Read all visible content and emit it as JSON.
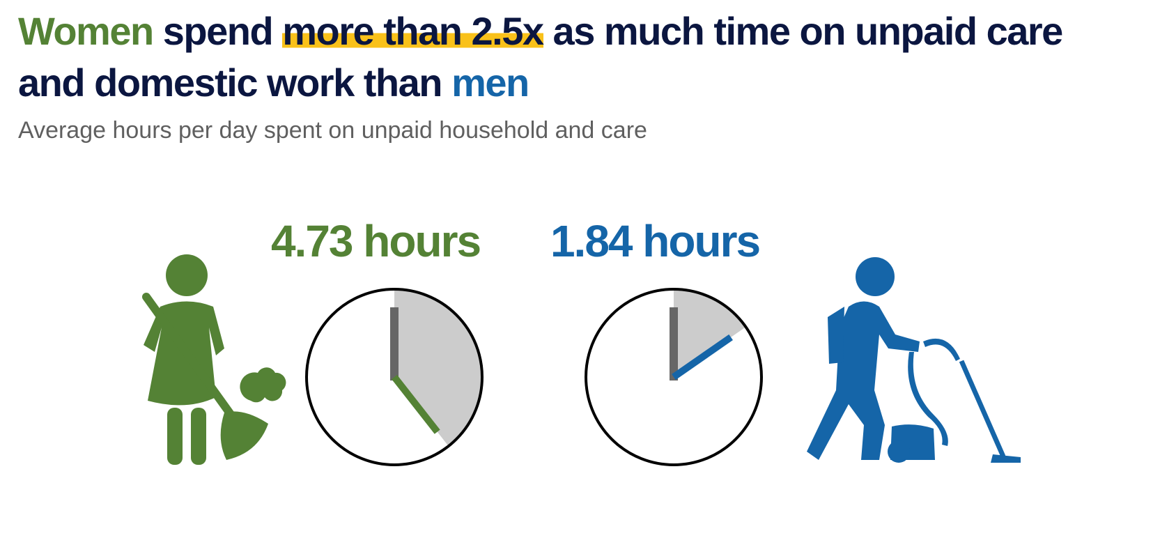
{
  "chart_data": {
    "type": "clock",
    "title_parts": [
      "Women",
      " spend ",
      "more than 2.5x",
      " as much time on unpaid care and domestic work than ",
      "men"
    ],
    "subtitle": "Average hours per day spent on unpaid household and care",
    "values": [
      4.73,
      1.84
    ],
    "value_labels": [
      "4.73 hours",
      "1.84 hours"
    ],
    "colors": [
      "#548235",
      "#1565a8"
    ],
    "lim": [
      0,
      12
    ]
  }
}
